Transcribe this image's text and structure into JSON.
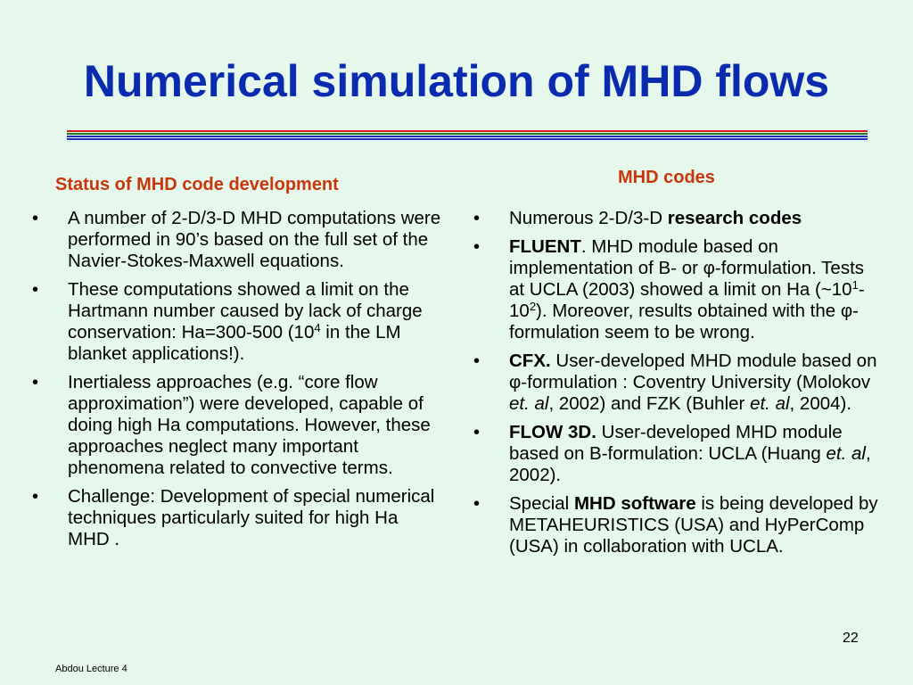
{
  "slide": {
    "title": "Numerical simulation of MHD flows",
    "rule_colors": [
      "#d81b1b",
      "#1f7a1f",
      "#1f2fbf",
      "#1f2fbf"
    ],
    "left": {
      "heading": "Status of MHD code development",
      "items": [
        [
          "A number of 2-D/3-D MHD computations were performed in 90’s based on the full set of the Navier-Stokes-Maxwell equations."
        ],
        [
          "These computations showed a limit on the Hartmann number caused by lack of charge conservation: Ha=300-500 (10",
          "4",
          " in the LM blanket applications!)."
        ],
        [
          "Inertialess approaches (e.g. “core flow approximation”) were developed, capable of doing high Ha computations. However, these approaches neglect many important phenomena related to convective terms."
        ],
        [
          "Challenge: Development of special numerical techniques particularly suited for high Ha MHD ."
        ]
      ]
    },
    "right": {
      "heading": "MHD codes",
      "items": [
        [
          "Numerous 2-D/3-D ",
          "research codes"
        ],
        [
          "FLUENT",
          ". MHD module based on implementation of B- or φ-formulation. Tests at UCLA (2003) showed a limit on Ha (~10",
          "1",
          "-10",
          "2",
          "). Moreover, results obtained with the φ-formulation seem to be wrong."
        ],
        [
          "CFX.",
          " User-developed MHD module based on φ-formulation : Coventry University (Molokov ",
          "et. al",
          ", 2002) and FZK (Buhler ",
          "et. al",
          ", 2004)."
        ],
        [
          "FLOW 3D.",
          " User-developed MHD module based on B-formulation: UCLA (Huang ",
          "et. al",
          ", 2002)."
        ],
        [
          "Special ",
          "MHD software",
          " is being developed by METAHEURISTICS (USA) and HyPerComp (USA) in collaboration with UCLA."
        ]
      ]
    },
    "footer": "Abdou Lecture 4",
    "page_number": "22"
  }
}
